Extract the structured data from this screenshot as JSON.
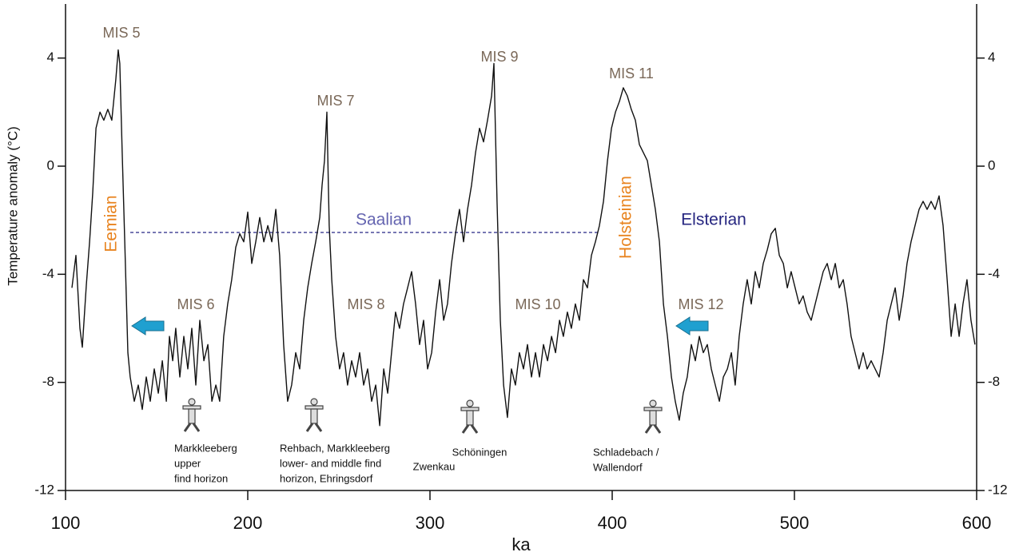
{
  "chart_data": {
    "type": "line",
    "x_label": "ka",
    "y_label": "Temperature anomaly (°C)",
    "xlim": [
      100,
      600
    ],
    "xticks": [
      100,
      200,
      300,
      400,
      500,
      600
    ],
    "ylim": [
      -12,
      6
    ],
    "yticks": [
      4,
      0,
      -4,
      -8,
      -12
    ],
    "color": "#111111",
    "x": [
      103.5,
      105.7,
      107.9,
      109.2,
      111.4,
      113.2,
      114.9,
      116.7,
      118.9,
      121,
      123.2,
      125.4,
      127.6,
      128.9,
      129.8,
      131.1,
      132.5,
      134.2,
      135.5,
      137.7,
      139.9,
      142.1,
      144.3,
      146.5,
      148.7,
      150.9,
      153.1,
      155.3,
      157,
      158.8,
      160.5,
      162.7,
      164.9,
      167.1,
      169.3,
      171.5,
      173.7,
      175.9,
      178.1,
      180.3,
      182.5,
      184.6,
      186.8,
      189,
      191.2,
      193.4,
      195.6,
      197.8,
      200,
      202.2,
      204.4,
      206.6,
      208.8,
      211,
      213.2,
      215.4,
      217.5,
      219.7,
      221.9,
      224.1,
      226.3,
      228.5,
      230.7,
      232.9,
      235.1,
      237.3,
      239.5,
      240.8,
      242.1,
      243.4,
      244.7,
      246.1,
      248.2,
      250.4,
      252.6,
      254.8,
      257,
      259.2,
      261.4,
      263.6,
      265.8,
      268,
      270.2,
      272.4,
      274.6,
      276.8,
      278.9,
      281.1,
      283.3,
      285.5,
      287.7,
      289.9,
      292.1,
      294.3,
      296.5,
      298.7,
      300.9,
      303.1,
      305.3,
      307.5,
      309.6,
      311.8,
      314,
      316.2,
      318.4,
      320.6,
      322.8,
      325,
      327.2,
      329.4,
      331.6,
      333.8,
      335.1,
      336.8,
      338.6,
      340.4,
      342.5,
      344.7,
      346.9,
      349.1,
      351.3,
      353.5,
      355.7,
      357.9,
      360.1,
      362.3,
      364.5,
      366.7,
      368.9,
      371.1,
      373.2,
      375.4,
      377.6,
      379.8,
      382,
      384.2,
      386.4,
      388.6,
      390.8,
      393,
      395.2,
      397.4,
      399.6,
      401.8,
      404,
      406.1,
      408.3,
      410.5,
      412.7,
      414.9,
      417.1,
      419.3,
      421.5,
      423.7,
      425.9,
      428.1,
      430.3,
      432.5,
      434.6,
      436.8,
      439,
      441.2,
      443.4,
      445.6,
      447.8,
      450,
      452.2,
      454.4,
      456.6,
      458.8,
      461,
      463.2,
      465.4,
      467.5,
      469.7,
      471.9,
      474.1,
      476.3,
      478.5,
      480.7,
      482.9,
      485.1,
      487.3,
      489.5,
      491.7,
      493.9,
      496.1,
      498.2,
      500.4,
      502.6,
      504.8,
      507,
      509.2,
      511.4,
      513.6,
      515.8,
      518,
      520.2,
      522.4,
      524.6,
      526.8,
      528.9,
      531.1,
      533.3,
      535.5,
      537.7,
      539.9,
      542.1,
      544.3,
      546.5,
      548.7,
      550.9,
      553.1,
      555.3,
      557.5,
      559.6,
      561.8,
      564,
      566.2,
      568.4,
      570.6,
      572.8,
      575,
      577.2,
      579.4,
      581.6,
      583.8,
      586,
      588.2,
      590.4,
      592.5,
      594.7,
      596.9,
      599.1
    ],
    "values": [
      -4.5,
      -3.3,
      -6.0,
      -6.7,
      -4.4,
      -2.8,
      -1.0,
      1.4,
      2.0,
      1.7,
      2.1,
      1.7,
      3.2,
      4.3,
      3.8,
      0.5,
      -2.8,
      -6.9,
      -7.8,
      -8.7,
      -8.1,
      -9.0,
      -7.8,
      -8.7,
      -7.5,
      -8.4,
      -7.2,
      -8.7,
      -6.3,
      -7.2,
      -6.0,
      -7.8,
      -6.3,
      -7.5,
      -6.0,
      -8.1,
      -5.7,
      -7.2,
      -6.6,
      -8.7,
      -8.1,
      -8.7,
      -6.3,
      -5.1,
      -4.2,
      -3.0,
      -2.5,
      -2.8,
      -1.7,
      -3.6,
      -2.8,
      -1.9,
      -2.8,
      -2.2,
      -2.8,
      -1.6,
      -3.3,
      -6.6,
      -8.7,
      -8.1,
      -6.9,
      -7.5,
      -5.7,
      -4.5,
      -3.6,
      -2.8,
      -1.9,
      -0.7,
      0.2,
      2.0,
      -2.2,
      -4.2,
      -6.3,
      -7.5,
      -6.9,
      -8.1,
      -7.2,
      -7.8,
      -6.9,
      -8.1,
      -7.5,
      -8.7,
      -8.1,
      -9.6,
      -7.5,
      -8.4,
      -6.9,
      -5.4,
      -6.0,
      -5.1,
      -4.5,
      -3.9,
      -5.1,
      -6.6,
      -5.7,
      -7.5,
      -6.9,
      -5.4,
      -4.2,
      -5.7,
      -5.1,
      -3.6,
      -2.5,
      -1.6,
      -2.8,
      -1.6,
      -0.7,
      0.5,
      1.4,
      0.9,
      1.7,
      2.6,
      3.8,
      -1.3,
      -5.7,
      -8.1,
      -9.3,
      -7.5,
      -8.1,
      -6.9,
      -7.5,
      -6.6,
      -7.8,
      -6.9,
      -7.8,
      -6.6,
      -7.2,
      -6.3,
      -6.9,
      -5.7,
      -6.3,
      -5.4,
      -6.0,
      -5.1,
      -5.7,
      -4.2,
      -4.5,
      -3.3,
      -2.8,
      -2.2,
      -1.3,
      0.2,
      1.4,
      2.0,
      2.4,
      2.9,
      2.6,
      2.1,
      1.7,
      0.8,
      0.5,
      0.2,
      -0.7,
      -1.6,
      -2.8,
      -5.1,
      -6.3,
      -7.8,
      -8.7,
      -9.4,
      -8.4,
      -7.8,
      -6.6,
      -7.2,
      -6.3,
      -6.9,
      -6.6,
      -7.5,
      -8.1,
      -8.7,
      -7.8,
      -7.5,
      -6.9,
      -8.1,
      -6.3,
      -5.1,
      -4.2,
      -5.1,
      -3.9,
      -4.5,
      -3.6,
      -3.1,
      -2.5,
      -2.3,
      -3.3,
      -3.6,
      -4.5,
      -3.9,
      -4.5,
      -5.1,
      -4.8,
      -5.4,
      -5.7,
      -5.1,
      -4.5,
      -3.9,
      -3.6,
      -4.2,
      -3.6,
      -4.5,
      -4.2,
      -5.1,
      -6.3,
      -6.9,
      -7.5,
      -6.9,
      -7.5,
      -7.2,
      -7.5,
      -7.8,
      -6.9,
      -5.7,
      -5.1,
      -4.5,
      -5.7,
      -4.8,
      -3.6,
      -2.8,
      -2.2,
      -1.6,
      -1.3,
      -1.6,
      -1.3,
      -1.6,
      -1.1,
      -2.2,
      -4.2,
      -6.3,
      -5.1,
      -6.3,
      -5.1,
      -4.2,
      -5.7,
      -6.6
    ],
    "stages": [
      "MIS 5",
      "MIS 7",
      "MIS 9",
      "MIS 11",
      "MIS 6",
      "MIS 8",
      "MIS 10",
      "MIS 12"
    ],
    "warm_periods": [
      "Eemian",
      "Holsteinian"
    ],
    "cold_periods": [
      "Saalian",
      "Elsterian"
    ],
    "sites": [
      [
        "Markkleeberg",
        "upper",
        "find horizon"
      ],
      [
        "Rehbach, Markkleeberg",
        "lower- and middle find",
        "horizon, Ehringsdorf"
      ],
      [
        "Schöningen"
      ],
      [
        "Zwenkau"
      ],
      [
        "Schladebach /",
        "Wallendorf"
      ]
    ]
  }
}
